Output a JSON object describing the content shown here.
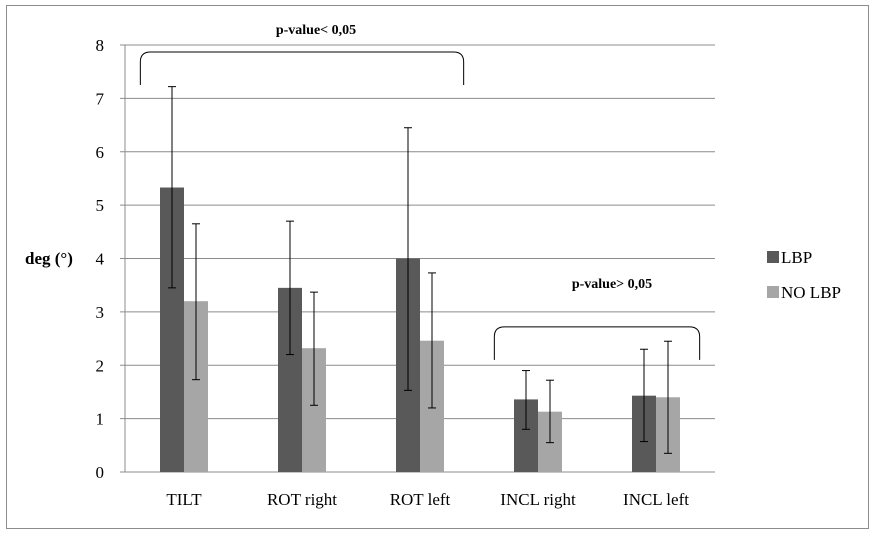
{
  "chart_data": {
    "type": "bar",
    "categories": [
      "TILT",
      "ROT right",
      "ROT left",
      "INCL right",
      "INCL left"
    ],
    "series": [
      {
        "name": "LBP",
        "color": "#595959",
        "values": [
          5.33,
          3.45,
          4.0,
          1.36,
          1.43
        ],
        "error_low": [
          3.45,
          2.2,
          1.53,
          0.8,
          0.57
        ],
        "error_high": [
          7.22,
          4.7,
          6.45,
          1.9,
          2.3
        ]
      },
      {
        "name": "NO LBP",
        "color": "#a6a6a6",
        "values": [
          3.2,
          2.32,
          2.46,
          1.13,
          1.4
        ],
        "error_low": [
          1.73,
          1.25,
          1.2,
          0.55,
          0.35
        ],
        "error_high": [
          4.65,
          3.37,
          3.73,
          1.72,
          2.45
        ]
      }
    ],
    "ylabel": "deg (°)",
    "ylim": [
      0,
      8
    ],
    "yticks": [
      "0",
      "1",
      "2",
      "3",
      "4",
      "5",
      "6",
      "7",
      "8"
    ],
    "grid": true,
    "legend": "right",
    "annotations": [
      {
        "text": "p-value< 0,05",
        "from_category": 0,
        "to_category": 2,
        "y": 7.25
      },
      {
        "text": "p-value> 0,05",
        "from_category": 3,
        "to_category": 4,
        "y": 2.1
      }
    ]
  }
}
